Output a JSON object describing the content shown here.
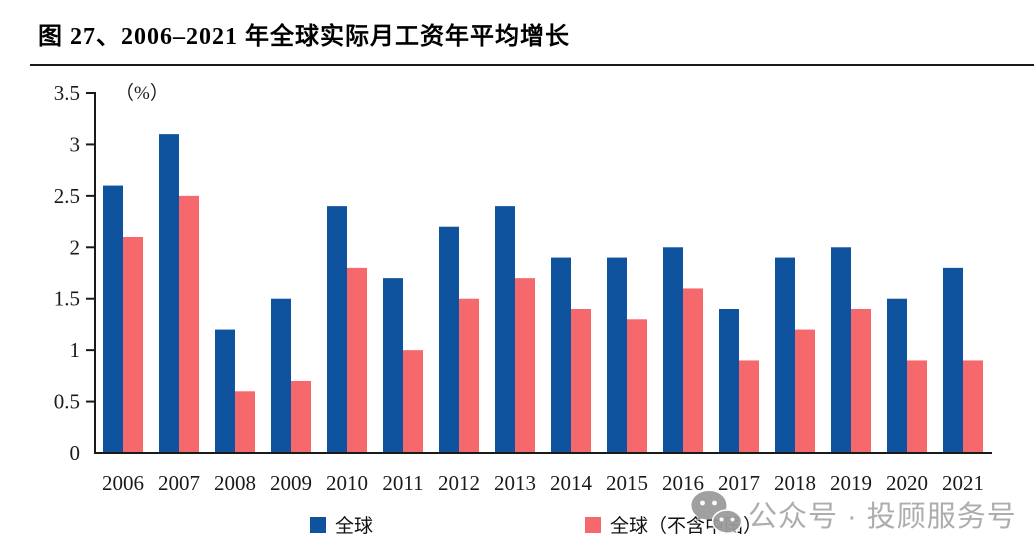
{
  "header": {
    "title": "图 27、2006–2021 年全球实际月工资年平均增长"
  },
  "chart_data": {
    "type": "bar",
    "title": "图 27、2006–2021 年全球实际月工资年平均增长",
    "unit_label": "（%）",
    "categories": [
      "2006",
      "2007",
      "2008",
      "2009",
      "2010",
      "2011",
      "2012",
      "2013",
      "2014",
      "2015",
      "2016",
      "2017",
      "2018",
      "2019",
      "2020",
      "2021"
    ],
    "series": [
      {
        "name": "全球",
        "color": "#0F529E",
        "values": [
          2.6,
          3.1,
          1.2,
          1.5,
          2.4,
          1.7,
          2.2,
          2.4,
          1.9,
          1.9,
          2.0,
          1.4,
          1.9,
          2.0,
          1.5,
          1.8
        ]
      },
      {
        "name": "全球（不含中国）",
        "color": "#F5696D",
        "values": [
          2.1,
          2.5,
          0.6,
          0.7,
          1.8,
          1.0,
          1.5,
          1.7,
          1.4,
          1.3,
          1.6,
          0.9,
          1.2,
          1.4,
          0.9,
          0.9
        ]
      }
    ],
    "ylim": [
      0,
      3.5
    ],
    "ytick_step": 0.5,
    "yticks": [
      "0",
      "0.5",
      "1",
      "1.5",
      "2",
      "2.5",
      "3",
      "3.5"
    ],
    "grid": false,
    "legend_position": "bottom",
    "axis_color": "#1a1a1a"
  },
  "watermark": {
    "icon": "wechat-icon",
    "icon_color": "#9b9b9b",
    "text": "公众号 · 投顾服务号",
    "text_color": "#a9a9a9"
  }
}
